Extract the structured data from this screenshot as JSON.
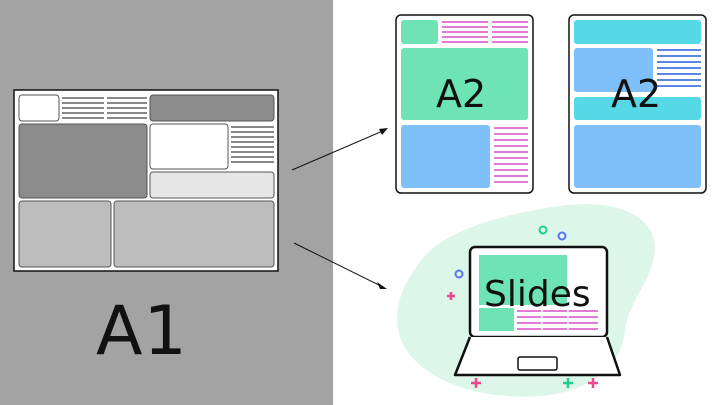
{
  "labels": {
    "a1": "A1",
    "a2_portrait_left": "A2",
    "a2_portrait_right": "A2",
    "slides": "Slides"
  },
  "colors": {
    "left_background": "#a3a3a3",
    "green": "#6ee3b6",
    "pink": "#e27ad6",
    "light_blue": "#7fc0fb",
    "cyan": "#56d8e6",
    "blue_lines": "#5a86e6",
    "blob": "#dcf6ea"
  },
  "icons": [
    "arrow-right",
    "laptop-icon",
    "plus-icon",
    "circle-icon"
  ]
}
